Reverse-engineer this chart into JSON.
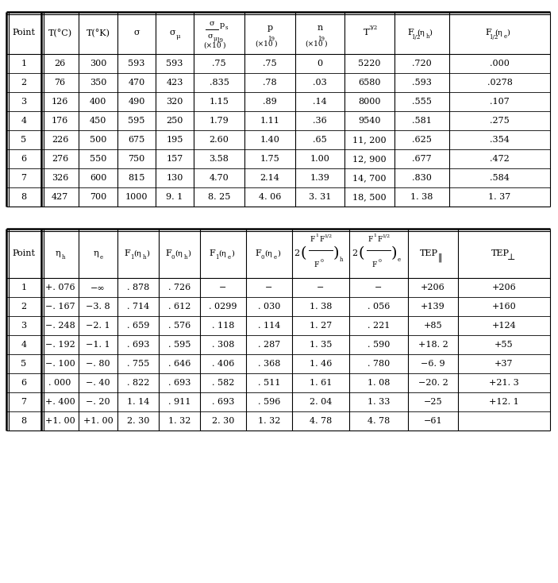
{
  "t1_rows": [
    [
      "1",
      "26",
      "300",
      "593",
      "593",
      ".75",
      ".75",
      "0",
      "5220",
      ".720",
      ".000"
    ],
    [
      "2",
      "76",
      "350",
      "470",
      "423",
      ".835",
      ".78",
      ".03",
      "6580",
      ".593",
      ".0278"
    ],
    [
      "3",
      "126",
      "400",
      "490",
      "320",
      "1.15",
      ".89",
      ".14",
      "8000",
      ".555",
      ".107"
    ],
    [
      "4",
      "176",
      "450",
      "595",
      "250",
      "1.79",
      "1.11",
      ".36",
      "9540",
      ".581",
      ".275"
    ],
    [
      "5",
      "226",
      "500",
      "675",
      "195",
      "2.60",
      "1.40",
      ".65",
      "11, 200",
      ".625",
      ".354"
    ],
    [
      "6",
      "276",
      "550",
      "750",
      "157",
      "3.58",
      "1.75",
      "1.00",
      "12, 900",
      ".677",
      ".472"
    ],
    [
      "7",
      "326",
      "600",
      "815",
      "130",
      "4.70",
      "2.14",
      "1.39",
      "14, 700",
      ".830",
      ".584"
    ],
    [
      "8",
      "427",
      "700",
      "1000",
      "9. 1",
      "8. 25",
      "4. 06",
      "3. 31",
      "18, 500",
      "1. 38",
      "1. 37"
    ]
  ],
  "t2_rows": [
    [
      "1",
      "+. 076",
      "−∞",
      ". 878",
      ". 726",
      "−",
      "−",
      "−",
      "−",
      "+206",
      "+206"
    ],
    [
      "2",
      "−. 167",
      "−3. 8",
      ". 714",
      ". 612",
      ". 0299",
      ". 030",
      "1. 38",
      ". 056",
      "+139",
      "+160"
    ],
    [
      "3",
      "−. 248",
      "−2. 1",
      ". 659",
      ". 576",
      ". 118",
      ". 114",
      "1. 27",
      ". 221",
      "+85",
      "+124"
    ],
    [
      "4",
      "−. 192",
      "−1. 1",
      ". 693",
      ". 595",
      ". 308",
      ". 287",
      "1. 35",
      ". 590",
      "+18. 2",
      "+55"
    ],
    [
      "5",
      "−. 100",
      "−. 80",
      ". 755",
      ". 646",
      ". 406",
      ". 368",
      "1. 46",
      ". 780",
      "−6. 9",
      "+37"
    ],
    [
      "6",
      ". 000",
      "−. 40",
      ". 822",
      ". 693",
      ". 582",
      ". 511",
      "1. 61",
      "1. 08",
      "−20. 2",
      "+21. 3"
    ],
    [
      "7",
      "+. 400",
      "−. 20",
      "1. 14",
      ". 911",
      ". 693",
      ". 596",
      "2. 04",
      "1. 33",
      "−25",
      "+12. 1"
    ],
    [
      "8",
      "+1. 00",
      "+1. 00",
      "2. 30",
      "1. 32",
      "2. 30",
      "1. 32",
      "4. 78",
      "4. 78",
      "−61",
      ""
    ]
  ],
  "bg": "#ffffff",
  "lc": "#000000",
  "tc": "#000000",
  "fs": 8.0
}
